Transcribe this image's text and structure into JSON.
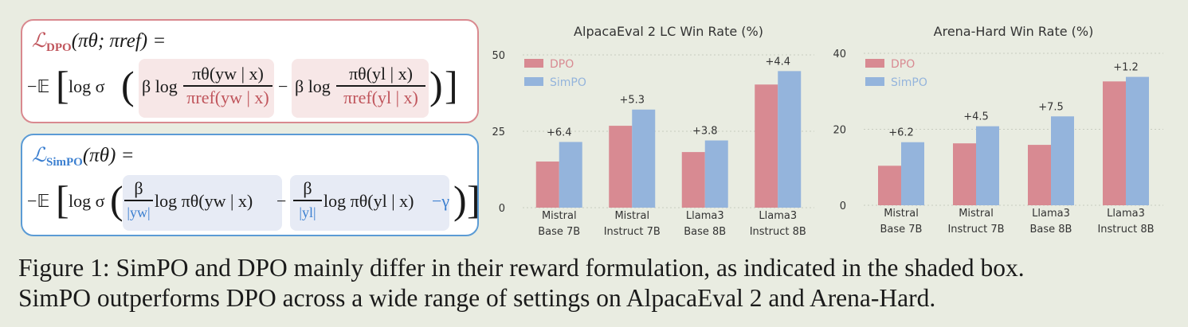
{
  "formulas": {
    "dpo": {
      "lhs": "ℒ",
      "lhs_sub": "DPO",
      "lhs_args": "(πθ; πref) =",
      "prefix": "−𝔼",
      "log_sigma": "log σ",
      "term1_pre": "β log",
      "term1_num": "πθ(yw | x)",
      "term1_den": "πref(yw | x)",
      "minus": "−",
      "term2_pre": "β log",
      "term2_num": "πθ(yl | x)",
      "term2_den": "πref(yl | x)"
    },
    "simpo": {
      "lhs": "ℒ",
      "lhs_sub": "SimPO",
      "lhs_args": "(πθ) =",
      "prefix": "−𝔼",
      "log_sigma": "log σ",
      "term1_num": "β",
      "term1_den": "|yw|",
      "term1_post": "log πθ(yw | x)",
      "minus": "−",
      "term2_num": "β",
      "term2_den": "|yl|",
      "term2_post": "log πθ(yl | x)",
      "gamma": "−γ"
    }
  },
  "chart_data": [
    {
      "type": "bar",
      "title": "AlpacaEval 2 LC Win Rate (%)",
      "categories": [
        [
          "Mistral",
          "Base 7B"
        ],
        [
          "Mistral",
          "Instruct 7B"
        ],
        [
          "Llama3",
          "Base 8B"
        ],
        [
          "Llama3",
          "Instruct 8B"
        ]
      ],
      "series": [
        {
          "name": "DPO",
          "values": [
            15.1,
            26.8,
            18.2,
            40.3
          ],
          "color": "#d88a92"
        },
        {
          "name": "SimPO",
          "values": [
            21.5,
            32.1,
            22.0,
            44.7
          ],
          "color": "#94b4dc"
        }
      ],
      "annotations": [
        "+6.4",
        "+5.3",
        "+3.8",
        "+4.4"
      ],
      "ylim": [
        0,
        50
      ],
      "yticks": [
        "0",
        "25",
        "50"
      ],
      "grid": true,
      "legend": "top-left"
    },
    {
      "type": "bar",
      "title": "Arena-Hard Win Rate (%)",
      "categories": [
        [
          "Mistral",
          "Base 7B"
        ],
        [
          "Mistral",
          "Instruct 7B"
        ],
        [
          "Llama3",
          "Base 8B"
        ],
        [
          "Llama3",
          "Instruct 8B"
        ]
      ],
      "series": [
        {
          "name": "DPO",
          "values": [
            10.4,
            16.3,
            15.9,
            32.6
          ],
          "color": "#d88a92"
        },
        {
          "name": "SimPO",
          "values": [
            16.6,
            20.8,
            23.4,
            33.8
          ],
          "color": "#94b4dc"
        }
      ],
      "annotations": [
        "+6.2",
        "+4.5",
        "+7.5",
        "+1.2"
      ],
      "ylim": [
        0,
        40
      ],
      "yticks": [
        "0",
        "20",
        "40"
      ],
      "grid": true,
      "legend": "top-left"
    }
  ],
  "caption": {
    "line1": "Figure 1: SimPO and DPO mainly differ in their reward formulation, as indicated in the shaded box.",
    "line2": "SimPO outperforms DPO across a wide range of settings on AlpacaEval 2 and Arena-Hard."
  }
}
